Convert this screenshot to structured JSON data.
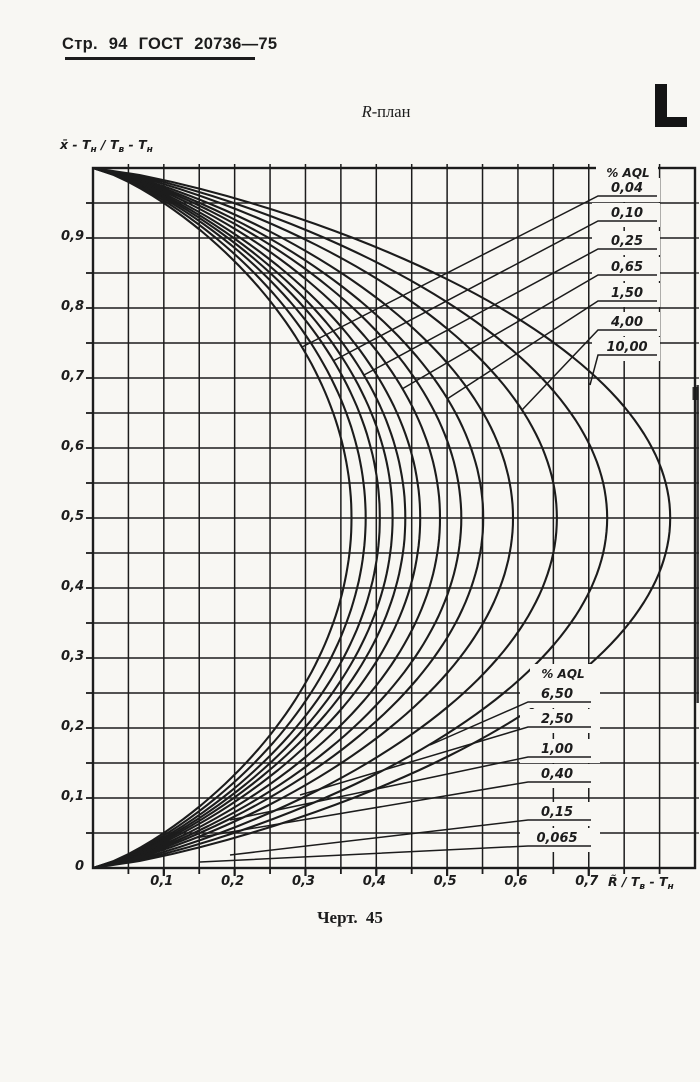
{
  "page": {
    "header": "Стр. 94 ГОСТ 20736—75",
    "corner_mark": "L",
    "caption": "Черт. 45"
  },
  "title": {
    "prefix": "R",
    "rest": "-план"
  },
  "y_axis": {
    "p1": "x̄ - T",
    "s1": "н",
    "p2": " / T",
    "s2": "в",
    "p3": " - T",
    "s3": "н"
  },
  "x_axis": {
    "p1": "R̃ / T",
    "s1": "в",
    "p2": " - T",
    "s2": "н"
  },
  "colors": {
    "ink": "#1c1c1c",
    "paper": "#f8f7f3"
  },
  "chart_data": {
    "type": "line",
    "title": "R-план",
    "xlabel": "R̃/(Tв - Tн)",
    "ylabel": "(x̄ - Tн)/(Tв - Tн)",
    "xlim": [
      0,
      0.85
    ],
    "ylim": [
      0,
      1.0
    ],
    "grid_step": 0.05,
    "grid": "on",
    "x_tick_values": [
      0.1,
      0.2,
      0.3,
      0.4,
      0.5,
      0.6,
      0.7
    ],
    "x_tick_labels": [
      "0,1",
      "0,2",
      "0,3",
      "0,4",
      "0,5",
      "0,6",
      "0,7"
    ],
    "y_tick_values": [
      0.9,
      0.8,
      0.7,
      0.6,
      0.5,
      0.4,
      0.3,
      0.2,
      0.1,
      0
    ],
    "y_tick_labels": [
      "0,9",
      "0,8",
      "0,7",
      "0,6",
      "0,5",
      "0,4",
      "0,3",
      "0,2",
      "0,1",
      "0"
    ],
    "curve_model": "x = r_max * (4*y*(1-y))^0.78 ; every curve passes through (0,0) and (0,1) with apex r_max at y=0.5",
    "series": [
      {
        "name": "0,04",
        "aql_percent": 0.04,
        "r_max": 0.365
      },
      {
        "name": "0,065",
        "aql_percent": 0.065,
        "r_max": 0.385
      },
      {
        "name": "0,10",
        "aql_percent": 0.1,
        "r_max": 0.405
      },
      {
        "name": "0,15",
        "aql_percent": 0.15,
        "r_max": 0.423
      },
      {
        "name": "0,25",
        "aql_percent": 0.25,
        "r_max": 0.441
      },
      {
        "name": "0,40",
        "aql_percent": 0.4,
        "r_max": 0.462
      },
      {
        "name": "0,65",
        "aql_percent": 0.65,
        "r_max": 0.49
      },
      {
        "name": "1,00",
        "aql_percent": 1.0,
        "r_max": 0.52
      },
      {
        "name": "1,50",
        "aql_percent": 1.5,
        "r_max": 0.551
      },
      {
        "name": "2,50",
        "aql_percent": 2.5,
        "r_max": 0.593
      },
      {
        "name": "4,00",
        "aql_percent": 4.0,
        "r_max": 0.655
      },
      {
        "name": "6,50",
        "aql_percent": 6.5,
        "r_max": 0.726
      },
      {
        "name": "10,00",
        "aql_percent": 10.0,
        "r_max": 0.815
      }
    ],
    "legend_header": "% AQL",
    "legend_top_order": [
      "0,04",
      "0,10",
      "0,25",
      "0,65",
      "1,50",
      "4,00",
      "10,00"
    ],
    "legend_bottom_order": [
      "6,50",
      "2,50",
      "1,00",
      "0,40",
      "0,15",
      "0,065"
    ],
    "legend_position": "two stacks inside plot: upper-right and lower-right, each entry underlined with a leader line to its curve"
  }
}
